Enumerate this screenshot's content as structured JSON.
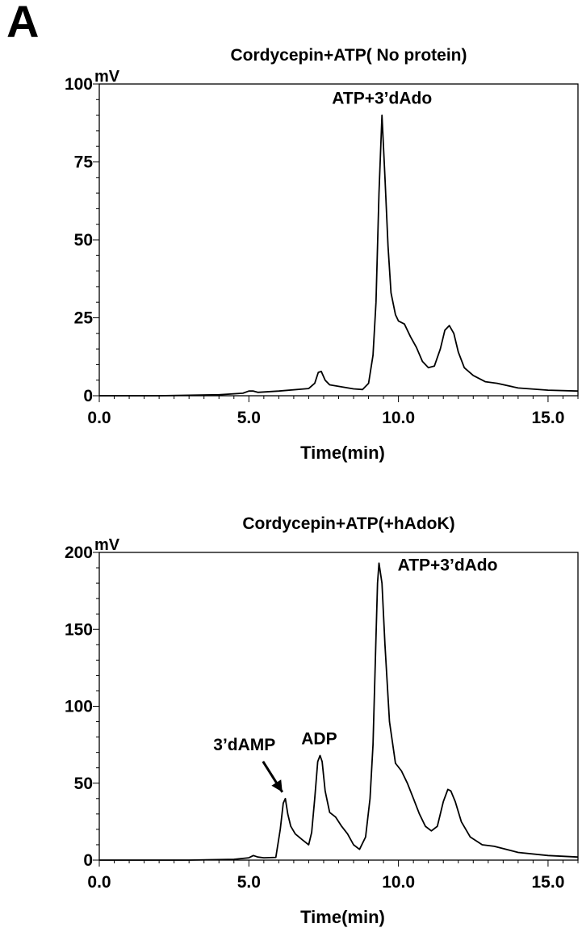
{
  "panel_label": "A",
  "chart_data": [
    {
      "type": "line",
      "title": "Cordycepin+ATP( No protein)",
      "xlabel": "Time(min)",
      "ylabel": "mV",
      "xlim": [
        0,
        16
      ],
      "ylim": [
        0,
        100
      ],
      "xticks": [
        0,
        5,
        10,
        15
      ],
      "xtick_labels": [
        "0.0",
        "5.0",
        "10.0",
        "15.0"
      ],
      "yticks": [
        0,
        25,
        50,
        75,
        100
      ],
      "ytick_labels": [
        "0",
        "25",
        "50",
        "75",
        "100"
      ],
      "grid": false,
      "annotations": [
        {
          "text": "ATP+3’dAdo",
          "x": 9.45,
          "y": 90,
          "arrow": false
        }
      ],
      "series": [
        {
          "x": [
            0,
            2,
            4,
            4.8,
            5.0,
            5.15,
            5.3,
            6.0,
            7.0,
            7.2,
            7.32,
            7.42,
            7.55,
            7.7,
            8.0,
            8.5,
            8.8,
            9.0,
            9.15,
            9.25,
            9.35,
            9.45,
            9.55,
            9.65,
            9.75,
            9.9,
            10.0,
            10.2,
            10.4,
            10.6,
            10.8,
            11.0,
            11.2,
            11.4,
            11.55,
            11.7,
            11.85,
            12.0,
            12.2,
            12.5,
            12.9,
            13.3,
            14.0,
            15.0,
            16.0
          ],
          "y": [
            0,
            0,
            0.3,
            0.8,
            1.5,
            1.5,
            1.1,
            1.5,
            2.3,
            4,
            7.5,
            7.8,
            5,
            3.5,
            3,
            2.2,
            2,
            4,
            13,
            30,
            65,
            90,
            70,
            48,
            33,
            26,
            24,
            23,
            19,
            15.5,
            11,
            9,
            9.5,
            15,
            21,
            22.5,
            20,
            14,
            9,
            6.5,
            4.5,
            4,
            2.5,
            1.8,
            1.5
          ]
        }
      ]
    },
    {
      "type": "line",
      "title": "Cordycepin+ATP(+hAdoK)",
      "xlabel": "Time(min)",
      "ylabel": "mV",
      "xlim": [
        0,
        16
      ],
      "ylim": [
        0,
        200
      ],
      "xticks": [
        0,
        5,
        10,
        15
      ],
      "xtick_labels": [
        "0.0",
        "5.0",
        "10.0",
        "15.0"
      ],
      "yticks": [
        0,
        50,
        100,
        150,
        200
      ],
      "ytick_labels": [
        "0",
        "50",
        "100",
        "150",
        "200"
      ],
      "grid": false,
      "annotations": [
        {
          "text": "ATP+3’dAdo",
          "x": 9.35,
          "y": 193,
          "arrow": false
        },
        {
          "text": "ADP",
          "x": 7.35,
          "y": 68,
          "arrow": false
        },
        {
          "text": "3’dAMP",
          "x": 6.2,
          "y": 40,
          "arrow": true
        }
      ],
      "series": [
        {
          "x": [
            0,
            3,
            4.5,
            5.0,
            5.15,
            5.3,
            5.5,
            5.9,
            6.05,
            6.15,
            6.22,
            6.3,
            6.4,
            6.55,
            6.8,
            7.0,
            7.1,
            7.2,
            7.3,
            7.38,
            7.45,
            7.55,
            7.7,
            7.9,
            8.1,
            8.3,
            8.5,
            8.7,
            8.9,
            9.05,
            9.15,
            9.25,
            9.3,
            9.35,
            9.45,
            9.55,
            9.7,
            9.9,
            10.1,
            10.3,
            10.5,
            10.7,
            10.9,
            11.1,
            11.3,
            11.5,
            11.65,
            11.75,
            11.9,
            12.1,
            12.4,
            12.8,
            13.2,
            14.0,
            15.0,
            16.0
          ],
          "y": [
            0,
            0,
            0.5,
            1.5,
            3,
            2,
            1.5,
            1.8,
            20,
            37,
            40,
            30,
            22,
            17,
            13,
            10,
            18,
            40,
            64,
            68,
            64,
            45,
            31,
            28,
            22,
            17,
            10,
            7,
            15,
            40,
            75,
            145,
            180,
            193,
            180,
            140,
            90,
            63,
            58,
            50,
            40,
            30,
            22,
            19,
            22,
            38,
            46,
            45,
            38,
            25,
            15,
            10,
            9,
            5,
            3,
            2
          ]
        }
      ]
    }
  ]
}
